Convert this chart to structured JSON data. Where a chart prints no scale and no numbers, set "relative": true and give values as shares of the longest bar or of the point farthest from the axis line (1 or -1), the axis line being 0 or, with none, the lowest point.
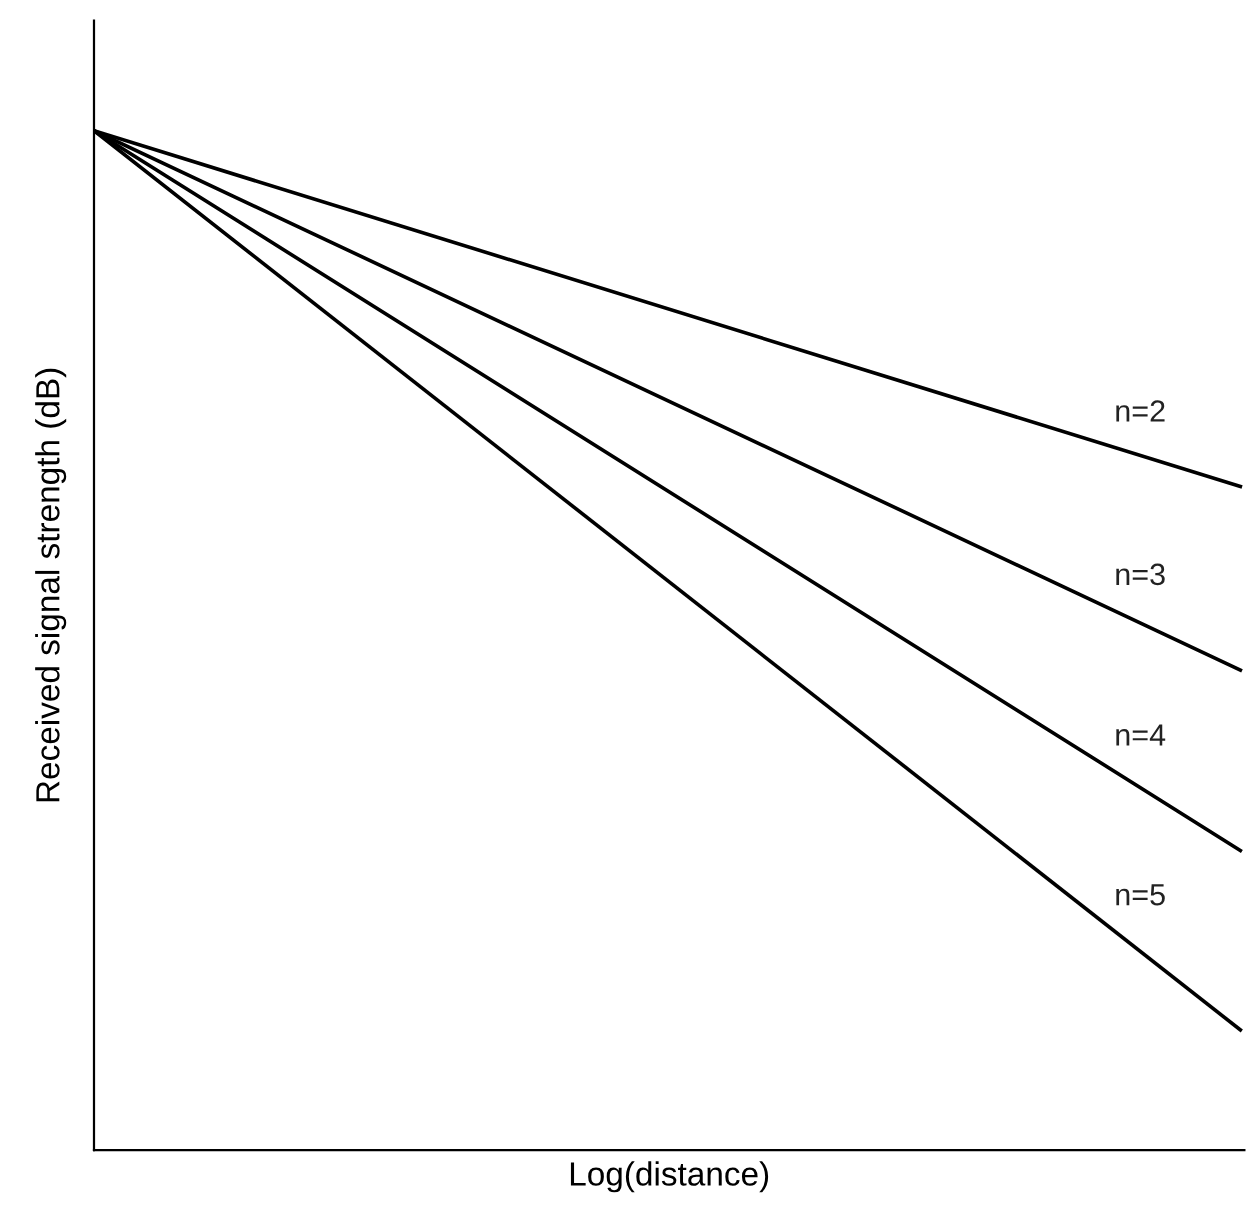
{
  "chart_data": {
    "type": "line",
    "relative": true,
    "xlabel": "Log(distance)",
    "ylabel": "Received signal strength (dB)",
    "categories": [
      null,
      null
    ],
    "series": [
      {
        "name": "n=2",
        "color": "#000000",
        "values": [
          1,
          0.651
        ]
      },
      {
        "name": "n=3",
        "color": "#000000",
        "values": [
          1,
          0.471
        ]
      },
      {
        "name": "n=4",
        "color": "#000000",
        "values": [
          1,
          0.294
        ]
      },
      {
        "name": "n=5",
        "color": "#000000",
        "values": [
          1,
          0.118
        ]
      }
    ],
    "legend": false,
    "tick_labels": false,
    "marker": "none",
    "line_style": "solid"
  }
}
